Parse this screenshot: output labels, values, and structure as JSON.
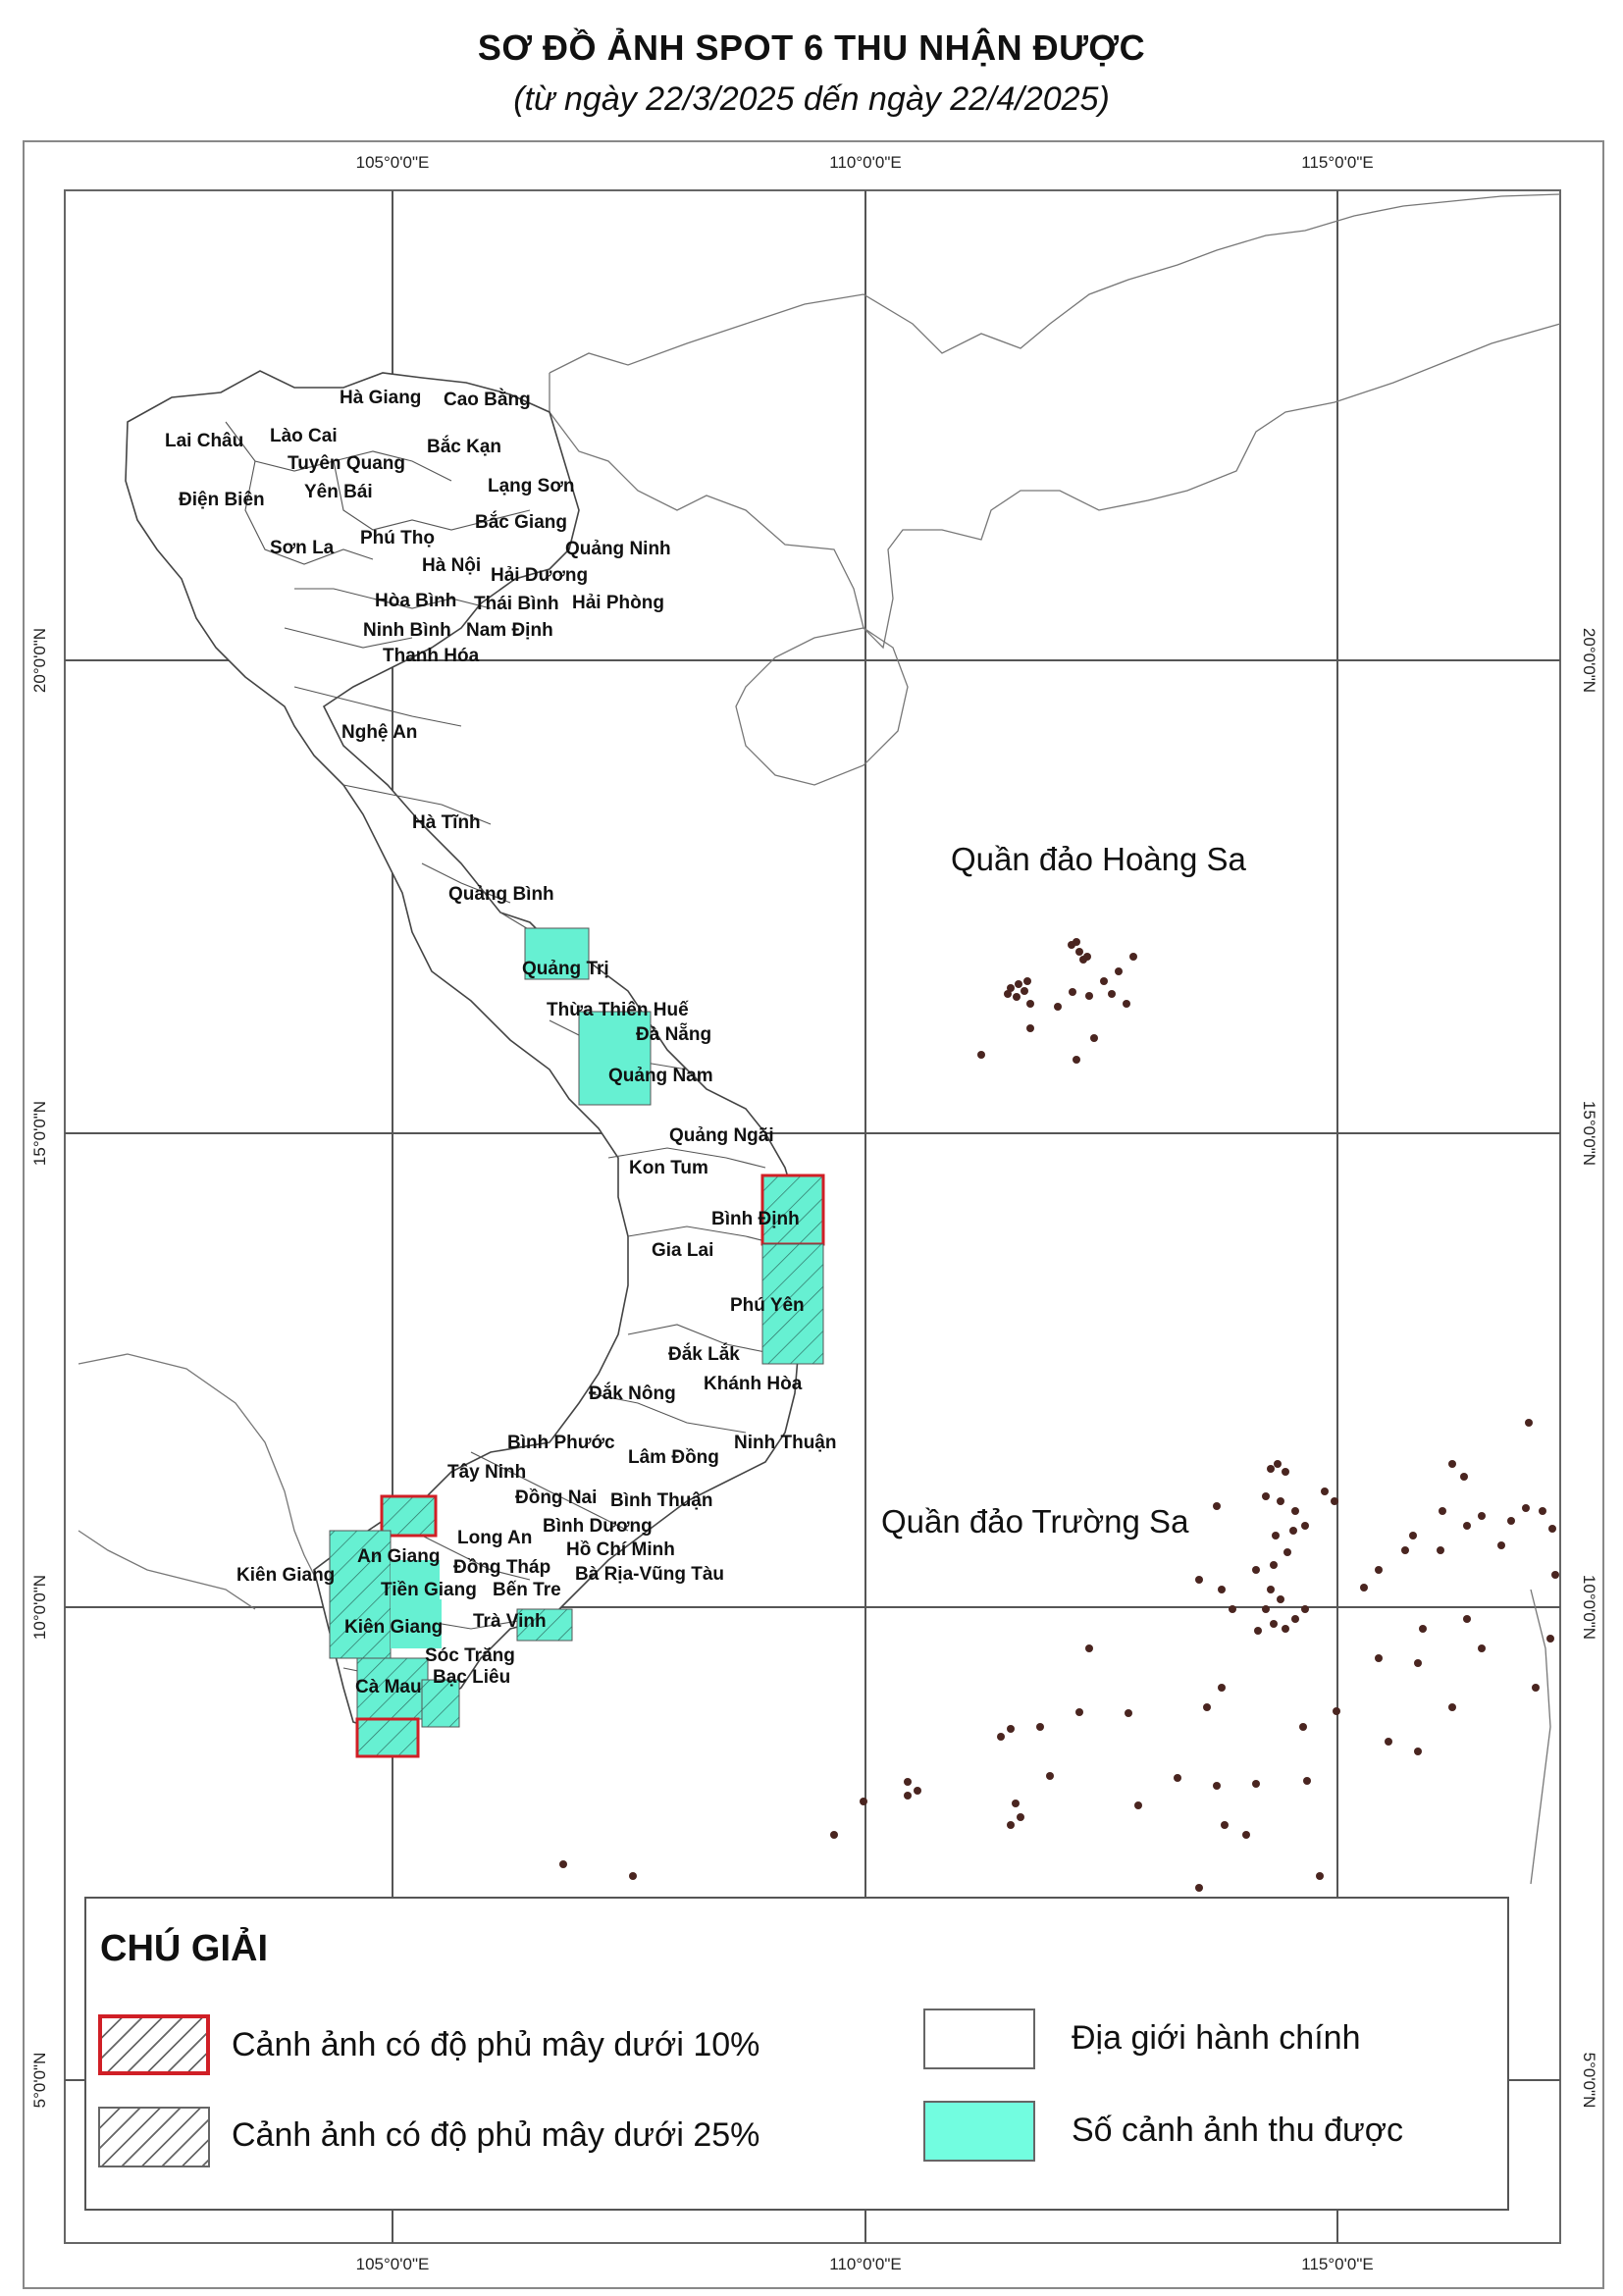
{
  "title": "SƠ ĐỒ ẢNH SPOT 6 THU NHẬN ĐƯỢC",
  "subtitle": "(từ ngày 22/3/2025 dến ngày 22/4/2025)",
  "map": {
    "longitude_labels": [
      "105°0'0\"E",
      "110°0'0\"E",
      "115°0'0\"E"
    ],
    "latitude_labels": [
      "20°0'0\"N",
      "15°0'0\"N",
      "10°0'0\"N",
      "5°0'0\"N"
    ],
    "provinces": [
      "Hà Giang",
      "Cao Bằng",
      "Lai Châu",
      "Lào Cai",
      "Bắc Kạn",
      "Tuyên Quang",
      "Lạng Sơn",
      "Yên Bái",
      "Điện Biên",
      "Bắc Giang",
      "Phú Thọ",
      "Sơn La",
      "Quảng Ninh",
      "Hà Nội",
      "Hải Dương",
      "Hòa Bình",
      "Thái Bình",
      "Hải Phòng",
      "Ninh Bình",
      "Nam Định",
      "Thanh Hóa",
      "Nghệ An",
      "Hà Tĩnh",
      "Quảng Bình",
      "Quảng Trị",
      "Thừa Thiên Huế",
      "Đà Nẵng",
      "Quảng Nam",
      "Quảng Ngãi",
      "Kon Tum",
      "Bình Định",
      "Gia Lai",
      "Phú Yên",
      "Đắk Lắk",
      "Khánh Hòa",
      "Đắk Nông",
      "Bình Phước",
      "Lâm Đồng",
      "Ninh Thuận",
      "Tây Ninh",
      "Đồng Nai",
      "Bình Thuận",
      "Bình Dương",
      "Long An",
      "An Giang",
      "Hồ Chí Minh",
      "Đồng Tháp",
      "Kiên Giang",
      "Tiền Giang",
      "Bến Tre",
      "Bà Rịa-Vũng Tàu",
      "Trà Vinh",
      "Sóc Trăng",
      "Cà Mau",
      "Bạc Liêu"
    ],
    "islands": [
      "Quần đảo Hoàng Sa",
      "Quần đảo Trường Sa"
    ]
  },
  "legend": {
    "title": "CHÚ GIẢI",
    "items": [
      {
        "label": "Cảnh ảnh có độ phủ mây dưới 10%",
        "style": "hatch-red-border"
      },
      {
        "label": "Cảnh ảnh có độ phủ mây dưới 25%",
        "style": "hatch"
      },
      {
        "label": "Địa giới hành chính",
        "style": "outline"
      },
      {
        "label": "Số cảnh ảnh thu được",
        "style": "fill"
      }
    ]
  },
  "colors": {
    "scene_fill": "#66f0d2",
    "cloud10_border": "#d01f26",
    "admin_border": "#444444",
    "graticule": "#555555"
  }
}
